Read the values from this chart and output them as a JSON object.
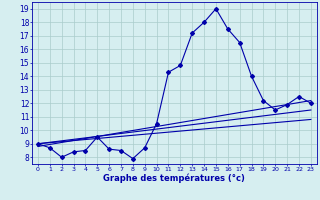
{
  "title": "",
  "xlabel": "Graphe des températures (°c)",
  "ylabel": "",
  "bg_color": "#d6eef0",
  "line_color": "#0000aa",
  "grid_color": "#aacccc",
  "x_min": -0.5,
  "x_max": 23.5,
  "y_min": 7.5,
  "y_max": 19.5,
  "y_ticks": [
    8,
    9,
    10,
    11,
    12,
    13,
    14,
    15,
    16,
    17,
    18,
    19
  ],
  "x_ticks": [
    0,
    1,
    2,
    3,
    4,
    5,
    6,
    7,
    8,
    9,
    10,
    11,
    12,
    13,
    14,
    15,
    16,
    17,
    18,
    19,
    20,
    21,
    22,
    23
  ],
  "series1_x": [
    0,
    1,
    2,
    3,
    4,
    5,
    6,
    7,
    8,
    9,
    10,
    11,
    12,
    13,
    14,
    15,
    16,
    17,
    18,
    19,
    20,
    21,
    22,
    23
  ],
  "series1_y": [
    9.0,
    8.7,
    8.0,
    8.4,
    8.5,
    9.5,
    8.6,
    8.5,
    7.9,
    8.7,
    10.5,
    14.3,
    14.8,
    17.2,
    18.0,
    19.0,
    17.5,
    16.5,
    14.0,
    12.2,
    11.5,
    11.9,
    12.5,
    12.0
  ],
  "series2_x": [
    0,
    23
  ],
  "series2_y": [
    9.0,
    11.5
  ],
  "series3_x": [
    0,
    23
  ],
  "series3_y": [
    9.0,
    10.8
  ],
  "series4_x": [
    0,
    23
  ],
  "series4_y": [
    8.8,
    12.2
  ]
}
